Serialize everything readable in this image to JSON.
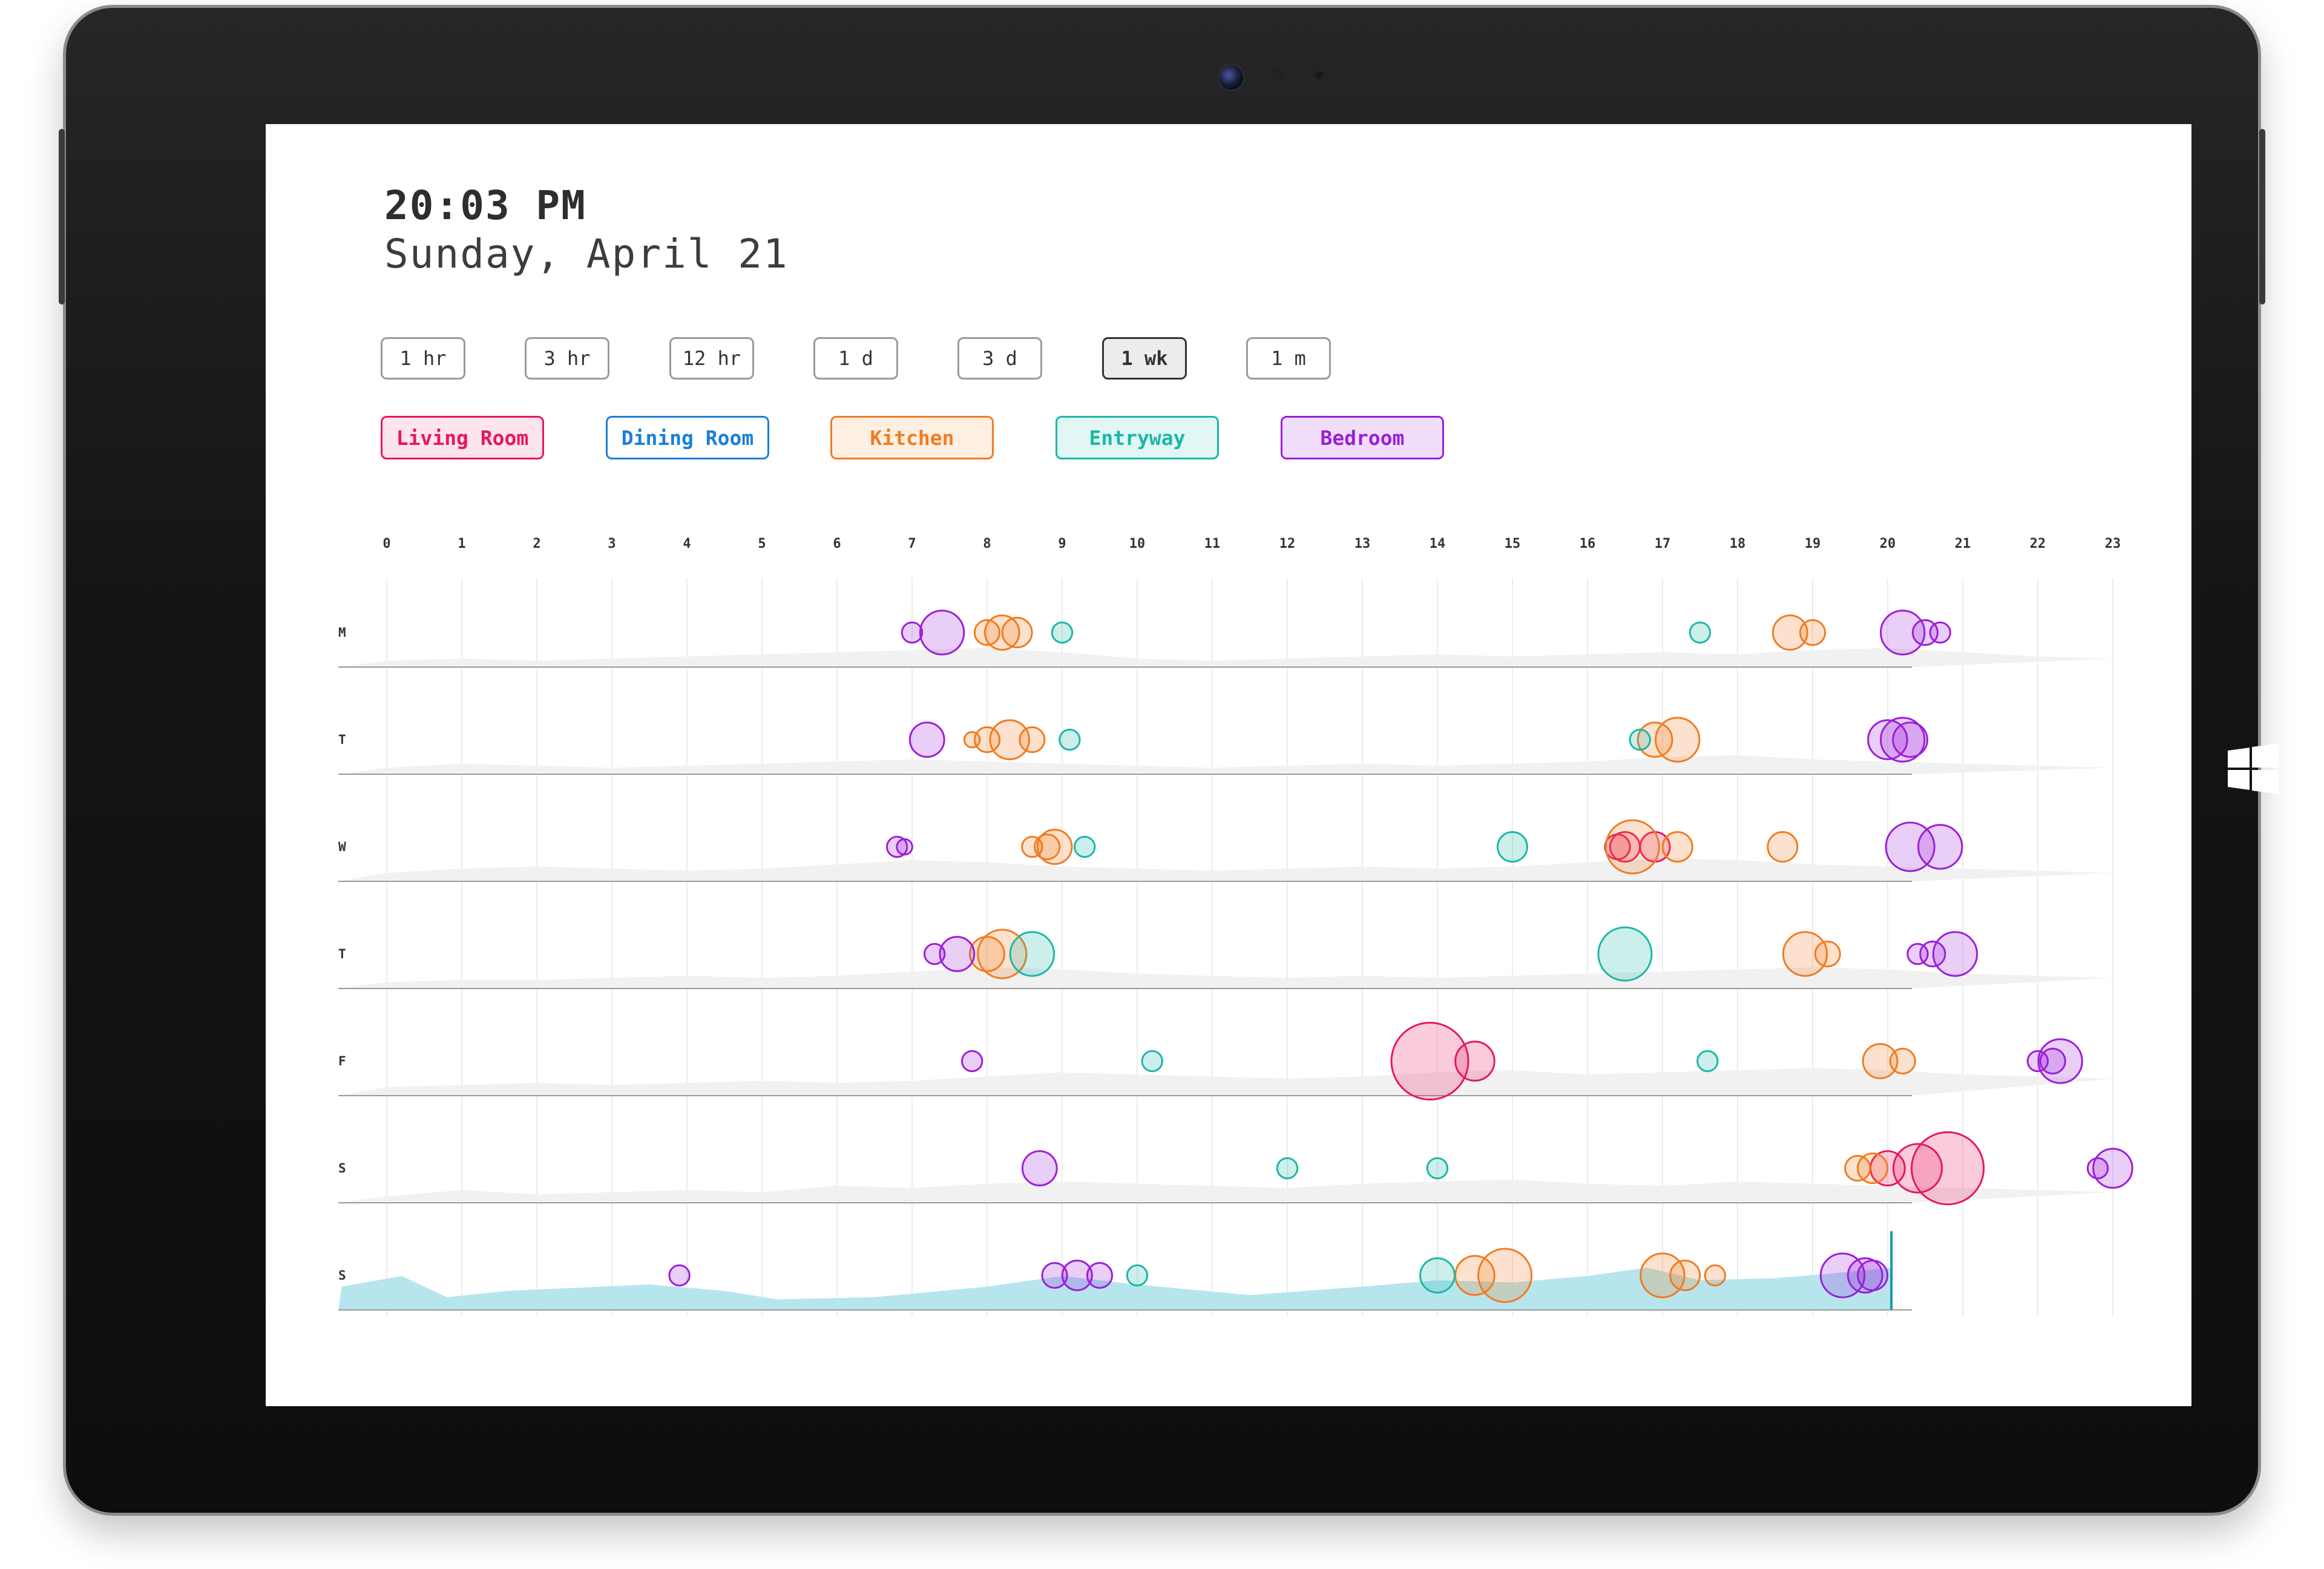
{
  "header": {
    "time": "20:03 PM",
    "date": "Sunday, April 21"
  },
  "time_ranges": [
    {
      "label": "1 hr",
      "active": false
    },
    {
      "label": "3 hr",
      "active": false
    },
    {
      "label": "12 hr",
      "active": false
    },
    {
      "label": "1 d",
      "active": false
    },
    {
      "label": "3 d",
      "active": false
    },
    {
      "label": "1 wk",
      "active": true
    },
    {
      "label": "1 m",
      "active": false
    }
  ],
  "rooms": [
    {
      "label": "Living Room",
      "color": "#e8175d",
      "fill": "#fde4ee"
    },
    {
      "label": "Dining Room",
      "color": "#1a7fd6",
      "fill": "#ffffff"
    },
    {
      "label": "Kitchen",
      "color": "#f07c22",
      "fill": "#fdefe2"
    },
    {
      "label": "Entryway",
      "color": "#1ab8a8",
      "fill": "#e2f6f3"
    },
    {
      "label": "Bedroom",
      "color": "#9b1fd9",
      "fill": "#f0defa"
    }
  ],
  "chart_data": {
    "type": "scatter",
    "x_ticks": [
      "0",
      "1",
      "2",
      "3",
      "4",
      "5",
      "6",
      "7",
      "8",
      "9",
      "10",
      "11",
      "12",
      "13",
      "14",
      "15",
      "16",
      "17",
      "18",
      "19",
      "20",
      "21",
      "22",
      "23"
    ],
    "xlim": [
      0,
      23
    ],
    "day_labels": [
      "M",
      "T",
      "W",
      "T",
      "F",
      "S",
      "S"
    ],
    "current_time_hour": 20.05,
    "current_day_index": 6,
    "activity_colors": {
      "past": "#f1f1f1",
      "today": "#b7e5ee",
      "now_line": "#1597a8"
    },
    "activity": [
      [
        [
          0,
          0.15
        ],
        [
          1,
          0.2
        ],
        [
          2,
          0.15
        ],
        [
          3,
          0.2
        ],
        [
          4,
          0.25
        ],
        [
          5,
          0.3
        ],
        [
          6,
          0.35
        ],
        [
          7,
          0.4
        ],
        [
          8,
          0.45
        ],
        [
          9,
          0.35
        ],
        [
          10,
          0.2
        ],
        [
          11,
          0.15
        ],
        [
          12,
          0.2
        ],
        [
          13,
          0.25
        ],
        [
          14,
          0.3
        ],
        [
          15,
          0.25
        ],
        [
          16,
          0.3
        ],
        [
          17,
          0.35
        ],
        [
          18,
          0.3
        ],
        [
          19,
          0.4
        ],
        [
          20,
          0.45
        ],
        [
          21,
          0.35
        ],
        [
          22,
          0.25
        ],
        [
          23,
          0.2
        ]
      ],
      [
        [
          0,
          0.15
        ],
        [
          1,
          0.25
        ],
        [
          2,
          0.2
        ],
        [
          3,
          0.15
        ],
        [
          4,
          0.2
        ],
        [
          5,
          0.25
        ],
        [
          6,
          0.3
        ],
        [
          7,
          0.35
        ],
        [
          8,
          0.3
        ],
        [
          9,
          0.25
        ],
        [
          10,
          0.2
        ],
        [
          11,
          0.15
        ],
        [
          12,
          0.2
        ],
        [
          13,
          0.25
        ],
        [
          14,
          0.2
        ],
        [
          15,
          0.25
        ],
        [
          16,
          0.3
        ],
        [
          17,
          0.4
        ],
        [
          18,
          0.45
        ],
        [
          19,
          0.35
        ],
        [
          20,
          0.3
        ],
        [
          21,
          0.25
        ],
        [
          22,
          0.2
        ],
        [
          23,
          0.15
        ]
      ],
      [
        [
          0,
          0.2
        ],
        [
          1,
          0.3
        ],
        [
          2,
          0.35
        ],
        [
          3,
          0.3
        ],
        [
          4,
          0.25
        ],
        [
          5,
          0.3
        ],
        [
          6,
          0.4
        ],
        [
          7,
          0.5
        ],
        [
          8,
          0.45
        ],
        [
          9,
          0.35
        ],
        [
          10,
          0.3
        ],
        [
          11,
          0.25
        ],
        [
          12,
          0.3
        ],
        [
          13,
          0.35
        ],
        [
          14,
          0.3
        ],
        [
          15,
          0.35
        ],
        [
          16,
          0.45
        ],
        [
          17,
          0.55
        ],
        [
          18,
          0.5
        ],
        [
          19,
          0.4
        ],
        [
          20,
          0.35
        ],
        [
          21,
          0.3
        ],
        [
          22,
          0.25
        ],
        [
          23,
          0.2
        ]
      ],
      [
        [
          0,
          0.15
        ],
        [
          1,
          0.2
        ],
        [
          2,
          0.2
        ],
        [
          3,
          0.25
        ],
        [
          4,
          0.3
        ],
        [
          5,
          0.25
        ],
        [
          6,
          0.3
        ],
        [
          7,
          0.4
        ],
        [
          8,
          0.5
        ],
        [
          9,
          0.45
        ],
        [
          10,
          0.35
        ],
        [
          11,
          0.3
        ],
        [
          12,
          0.25
        ],
        [
          13,
          0.3
        ],
        [
          14,
          0.25
        ],
        [
          15,
          0.3
        ],
        [
          16,
          0.35
        ],
        [
          17,
          0.4
        ],
        [
          18,
          0.45
        ],
        [
          19,
          0.5
        ],
        [
          20,
          0.45
        ],
        [
          21,
          0.35
        ],
        [
          22,
          0.3
        ],
        [
          23,
          0.25
        ]
      ],
      [
        [
          0,
          0.2
        ],
        [
          1,
          0.25
        ],
        [
          2,
          0.3
        ],
        [
          3,
          0.25
        ],
        [
          4,
          0.3
        ],
        [
          5,
          0.35
        ],
        [
          6,
          0.3
        ],
        [
          7,
          0.35
        ],
        [
          8,
          0.45
        ],
        [
          9,
          0.55
        ],
        [
          10,
          0.5
        ],
        [
          11,
          0.45
        ],
        [
          12,
          0.4
        ],
        [
          13,
          0.45
        ],
        [
          14,
          0.55
        ],
        [
          15,
          0.6
        ],
        [
          16,
          0.5
        ],
        [
          17,
          0.55
        ],
        [
          18,
          0.6
        ],
        [
          19,
          0.65
        ],
        [
          20,
          0.6
        ],
        [
          21,
          0.5
        ],
        [
          22,
          0.45
        ],
        [
          23,
          0.4
        ]
      ],
      [
        [
          0,
          0.15
        ],
        [
          1,
          0.3
        ],
        [
          2,
          0.2
        ],
        [
          3,
          0.25
        ],
        [
          4,
          0.3
        ],
        [
          5,
          0.25
        ],
        [
          6,
          0.4
        ],
        [
          7,
          0.35
        ],
        [
          8,
          0.45
        ],
        [
          9,
          0.5
        ],
        [
          10,
          0.45
        ],
        [
          11,
          0.4
        ],
        [
          12,
          0.35
        ],
        [
          13,
          0.45
        ],
        [
          14,
          0.5
        ],
        [
          15,
          0.55
        ],
        [
          16,
          0.45
        ],
        [
          17,
          0.4
        ],
        [
          18,
          0.5
        ],
        [
          19,
          0.45
        ],
        [
          20,
          0.4
        ],
        [
          21,
          0.35
        ],
        [
          22,
          0.3
        ],
        [
          23,
          0.25
        ]
      ],
      [
        [
          -0.6,
          0.55
        ],
        [
          0.2,
          0.8
        ],
        [
          0.8,
          0.3
        ],
        [
          1.6,
          0.45
        ],
        [
          3.5,
          0.6
        ],
        [
          4.5,
          0.45
        ],
        [
          5.2,
          0.25
        ],
        [
          6.5,
          0.3
        ],
        [
          8,
          0.55
        ],
        [
          9,
          0.8
        ],
        [
          10,
          0.6
        ],
        [
          11.5,
          0.35
        ],
        [
          13,
          0.55
        ],
        [
          14,
          0.7
        ],
        [
          15,
          0.65
        ],
        [
          16,
          0.8
        ],
        [
          16.8,
          1.0
        ],
        [
          17.5,
          0.7
        ],
        [
          18.5,
          0.75
        ],
        [
          19.2,
          0.85
        ],
        [
          20.05,
          1.0
        ]
      ]
    ],
    "series": [
      {
        "name": "Living Room",
        "events": [
          [
            2,
            16.5,
            5
          ],
          [
            2,
            16.9,
            5
          ],
          [
            2,
            16.4,
            4
          ],
          [
            4,
            13.9,
            15
          ],
          [
            4,
            14.5,
            7
          ],
          [
            5,
            20.0,
            6
          ],
          [
            5,
            20.4,
            9
          ],
          [
            5,
            20.8,
            14
          ]
        ]
      },
      {
        "name": "Kitchen",
        "events": [
          [
            0,
            8.0,
            4
          ],
          [
            0,
            8.2,
            6
          ],
          [
            0,
            8.4,
            5
          ],
          [
            0,
            18.7,
            6
          ],
          [
            0,
            19.0,
            4
          ],
          [
            1,
            7.8,
            2
          ],
          [
            1,
            8.0,
            4
          ],
          [
            1,
            8.3,
            7
          ],
          [
            1,
            8.6,
            4
          ],
          [
            1,
            16.9,
            6
          ],
          [
            1,
            17.2,
            8
          ],
          [
            2,
            8.6,
            3
          ],
          [
            2,
            8.8,
            4
          ],
          [
            2,
            8.9,
            6
          ],
          [
            2,
            16.6,
            10
          ],
          [
            2,
            17.2,
            5
          ],
          [
            2,
            18.6,
            5
          ],
          [
            3,
            8.0,
            6
          ],
          [
            3,
            8.2,
            9
          ],
          [
            3,
            18.9,
            8
          ],
          [
            3,
            19.2,
            4
          ],
          [
            4,
            19.9,
            6
          ],
          [
            4,
            20.2,
            4
          ],
          [
            5,
            19.6,
            4
          ],
          [
            5,
            19.8,
            5
          ],
          [
            6,
            14.5,
            7
          ],
          [
            6,
            14.9,
            10
          ],
          [
            6,
            17.0,
            8
          ],
          [
            6,
            17.3,
            5
          ],
          [
            6,
            17.7,
            3
          ]
        ]
      },
      {
        "name": "Entryway",
        "events": [
          [
            0,
            9.0,
            3
          ],
          [
            0,
            17.5,
            3
          ],
          [
            1,
            9.1,
            3
          ],
          [
            1,
            16.7,
            3
          ],
          [
            2,
            9.3,
            3
          ],
          [
            2,
            15.0,
            5
          ],
          [
            3,
            8.6,
            8
          ],
          [
            3,
            16.5,
            10
          ],
          [
            4,
            10.2,
            3
          ],
          [
            4,
            17.6,
            3
          ],
          [
            5,
            12.0,
            3
          ],
          [
            5,
            14.0,
            3
          ],
          [
            6,
            10.0,
            3
          ],
          [
            6,
            14.0,
            6
          ]
        ]
      },
      {
        "name": "Bedroom",
        "events": [
          [
            0,
            7.0,
            3
          ],
          [
            0,
            7.4,
            8
          ],
          [
            0,
            20.2,
            8
          ],
          [
            0,
            20.5,
            4
          ],
          [
            0,
            20.7,
            3
          ],
          [
            1,
            7.2,
            6
          ],
          [
            1,
            20.0,
            7
          ],
          [
            1,
            20.2,
            8
          ],
          [
            1,
            20.3,
            6
          ],
          [
            2,
            6.8,
            3
          ],
          [
            2,
            6.9,
            2
          ],
          [
            2,
            20.3,
            9
          ],
          [
            2,
            20.7,
            8
          ],
          [
            3,
            7.3,
            3
          ],
          [
            3,
            7.6,
            6
          ],
          [
            3,
            20.4,
            3
          ],
          [
            3,
            20.6,
            4
          ],
          [
            3,
            20.9,
            8
          ],
          [
            4,
            7.8,
            3
          ],
          [
            4,
            22.0,
            3
          ],
          [
            4,
            22.2,
            4
          ],
          [
            4,
            22.3,
            8
          ],
          [
            5,
            8.7,
            6
          ],
          [
            5,
            22.8,
            3
          ],
          [
            5,
            23.0,
            7
          ],
          [
            6,
            3.9,
            3
          ],
          [
            6,
            8.9,
            4
          ],
          [
            6,
            9.2,
            5
          ],
          [
            6,
            9.5,
            4
          ],
          [
            6,
            19.4,
            8
          ],
          [
            6,
            19.7,
            6
          ],
          [
            6,
            19.8,
            5
          ]
        ]
      }
    ]
  }
}
